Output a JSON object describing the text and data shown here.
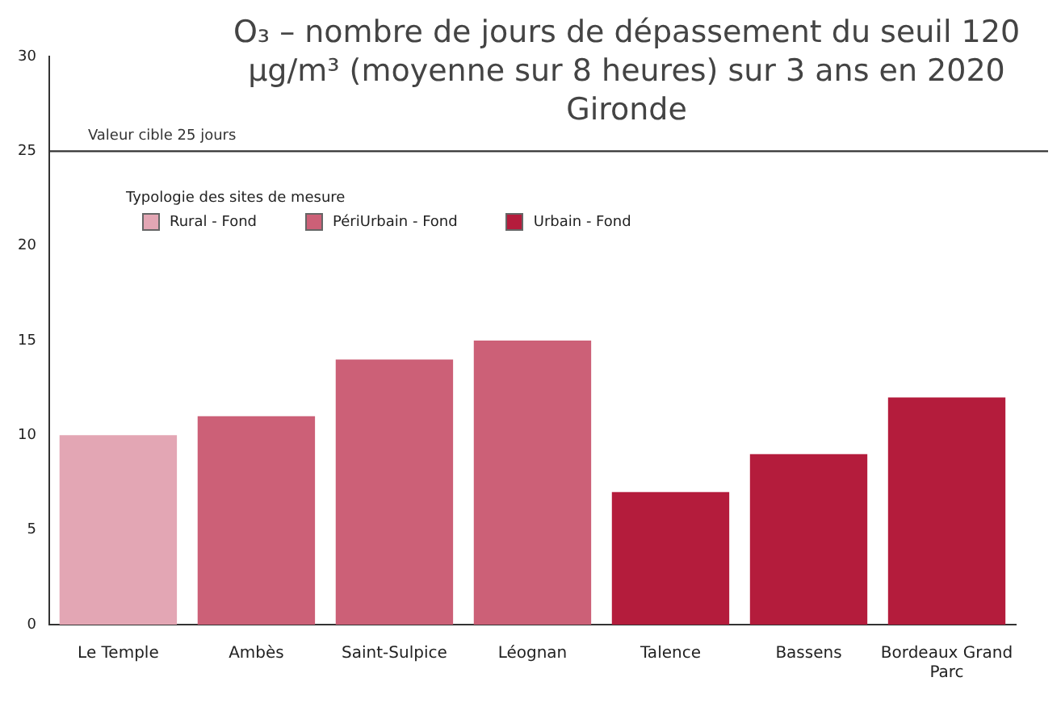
{
  "chart_data": {
    "type": "bar",
    "title": "O₃ – nombre de jours de dépassement du seuil 120 µg/m³ (moyenne sur 8 heures) sur 3 ans en 2020",
    "subtitle": "Gironde",
    "legend_title": "Typologie des sites de mesure",
    "categories": [
      "Le Temple",
      "Ambès",
      "Saint-Sulpice",
      "Léognan",
      "Talence",
      "Bassens",
      "Bordeaux Grand Parc"
    ],
    "series": [
      {
        "name": "Rural - Fond",
        "color": "#e3a6b4",
        "values": [
          10,
          null,
          null,
          null,
          null,
          null,
          null
        ]
      },
      {
        "name": "PériUrbain - Fond",
        "color": "#cc6077",
        "values": [
          null,
          11,
          14,
          15,
          null,
          null,
          null
        ]
      },
      {
        "name": "Urbain - Fond",
        "color": "#b41c3c",
        "values": [
          null,
          null,
          null,
          null,
          7,
          9,
          12
        ]
      }
    ],
    "ylim": [
      0,
      30
    ],
    "yticks": [
      0,
      5,
      10,
      15,
      20,
      25,
      30
    ],
    "grid": false,
    "legend": "top left",
    "ref_lines": [
      {
        "axis": "y",
        "value": 25,
        "label": "Valeur cible 25 jours",
        "color": "#333333"
      }
    ]
  }
}
